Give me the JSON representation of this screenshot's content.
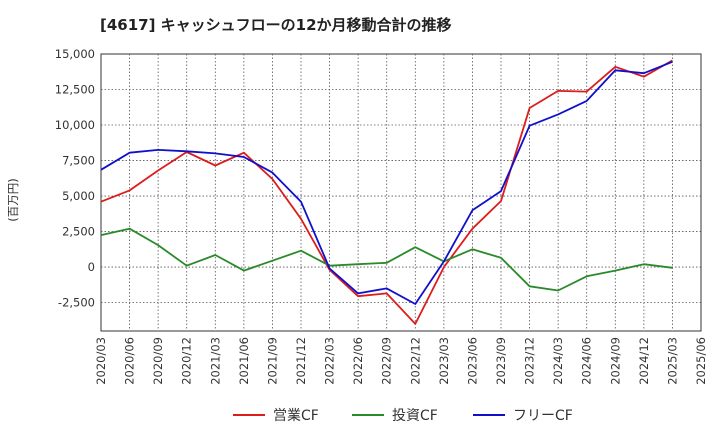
{
  "chart_data": {
    "type": "line",
    "title": "[4617]  キャッシュフローの12か月移動合計の推移",
    "ylabel": "(百万円)",
    "xlabel": "",
    "ylim": [
      -4500,
      15000
    ],
    "yticks": [
      15000,
      12500,
      10000,
      7500,
      5000,
      2500,
      0,
      -2500
    ],
    "ytick_labels": [
      "15,000",
      "12,500",
      "10,000",
      "7,500",
      "5,000",
      "2,500",
      "0",
      "-2,500"
    ],
    "x_tick_labels": [
      "2020/03",
      "2020/06",
      "2020/09",
      "2020/12",
      "2021/03",
      "2021/06",
      "2021/09",
      "2021/12",
      "2022/03",
      "2022/06",
      "2022/09",
      "2022/12",
      "2023/03",
      "2023/06",
      "2023/09",
      "2023/12",
      "2024/03",
      "2024/06",
      "2024/09",
      "2024/12",
      "2025/03",
      "2025/06"
    ],
    "grid": true,
    "series": [
      {
        "name": "営業CF",
        "color": "#dd1c1c",
        "values": [
          4600,
          5400,
          6800,
          8100,
          7150,
          8050,
          6200,
          3400,
          -200,
          -2050,
          -1850,
          -4000,
          0,
          2700,
          4650,
          11200,
          12400,
          12350,
          14100,
          13400,
          14550
        ]
      },
      {
        "name": "投資CF",
        "color": "#2a8a2a",
        "values": [
          2250,
          2700,
          1550,
          100,
          850,
          -250,
          450,
          1150,
          100,
          200,
          300,
          1400,
          400,
          1250,
          650,
          -1350,
          -1650,
          -650,
          -250,
          200,
          -50
        ]
      },
      {
        "name": "フリーCF",
        "color": "#1010cc",
        "values": [
          6850,
          8050,
          8250,
          8150,
          8000,
          7750,
          6650,
          4600,
          -100,
          -1850,
          -1500,
          -2600,
          400,
          4000,
          5350,
          9950,
          10750,
          11700,
          13850,
          13650,
          14450
        ]
      }
    ],
    "legend_position": "bottom"
  }
}
